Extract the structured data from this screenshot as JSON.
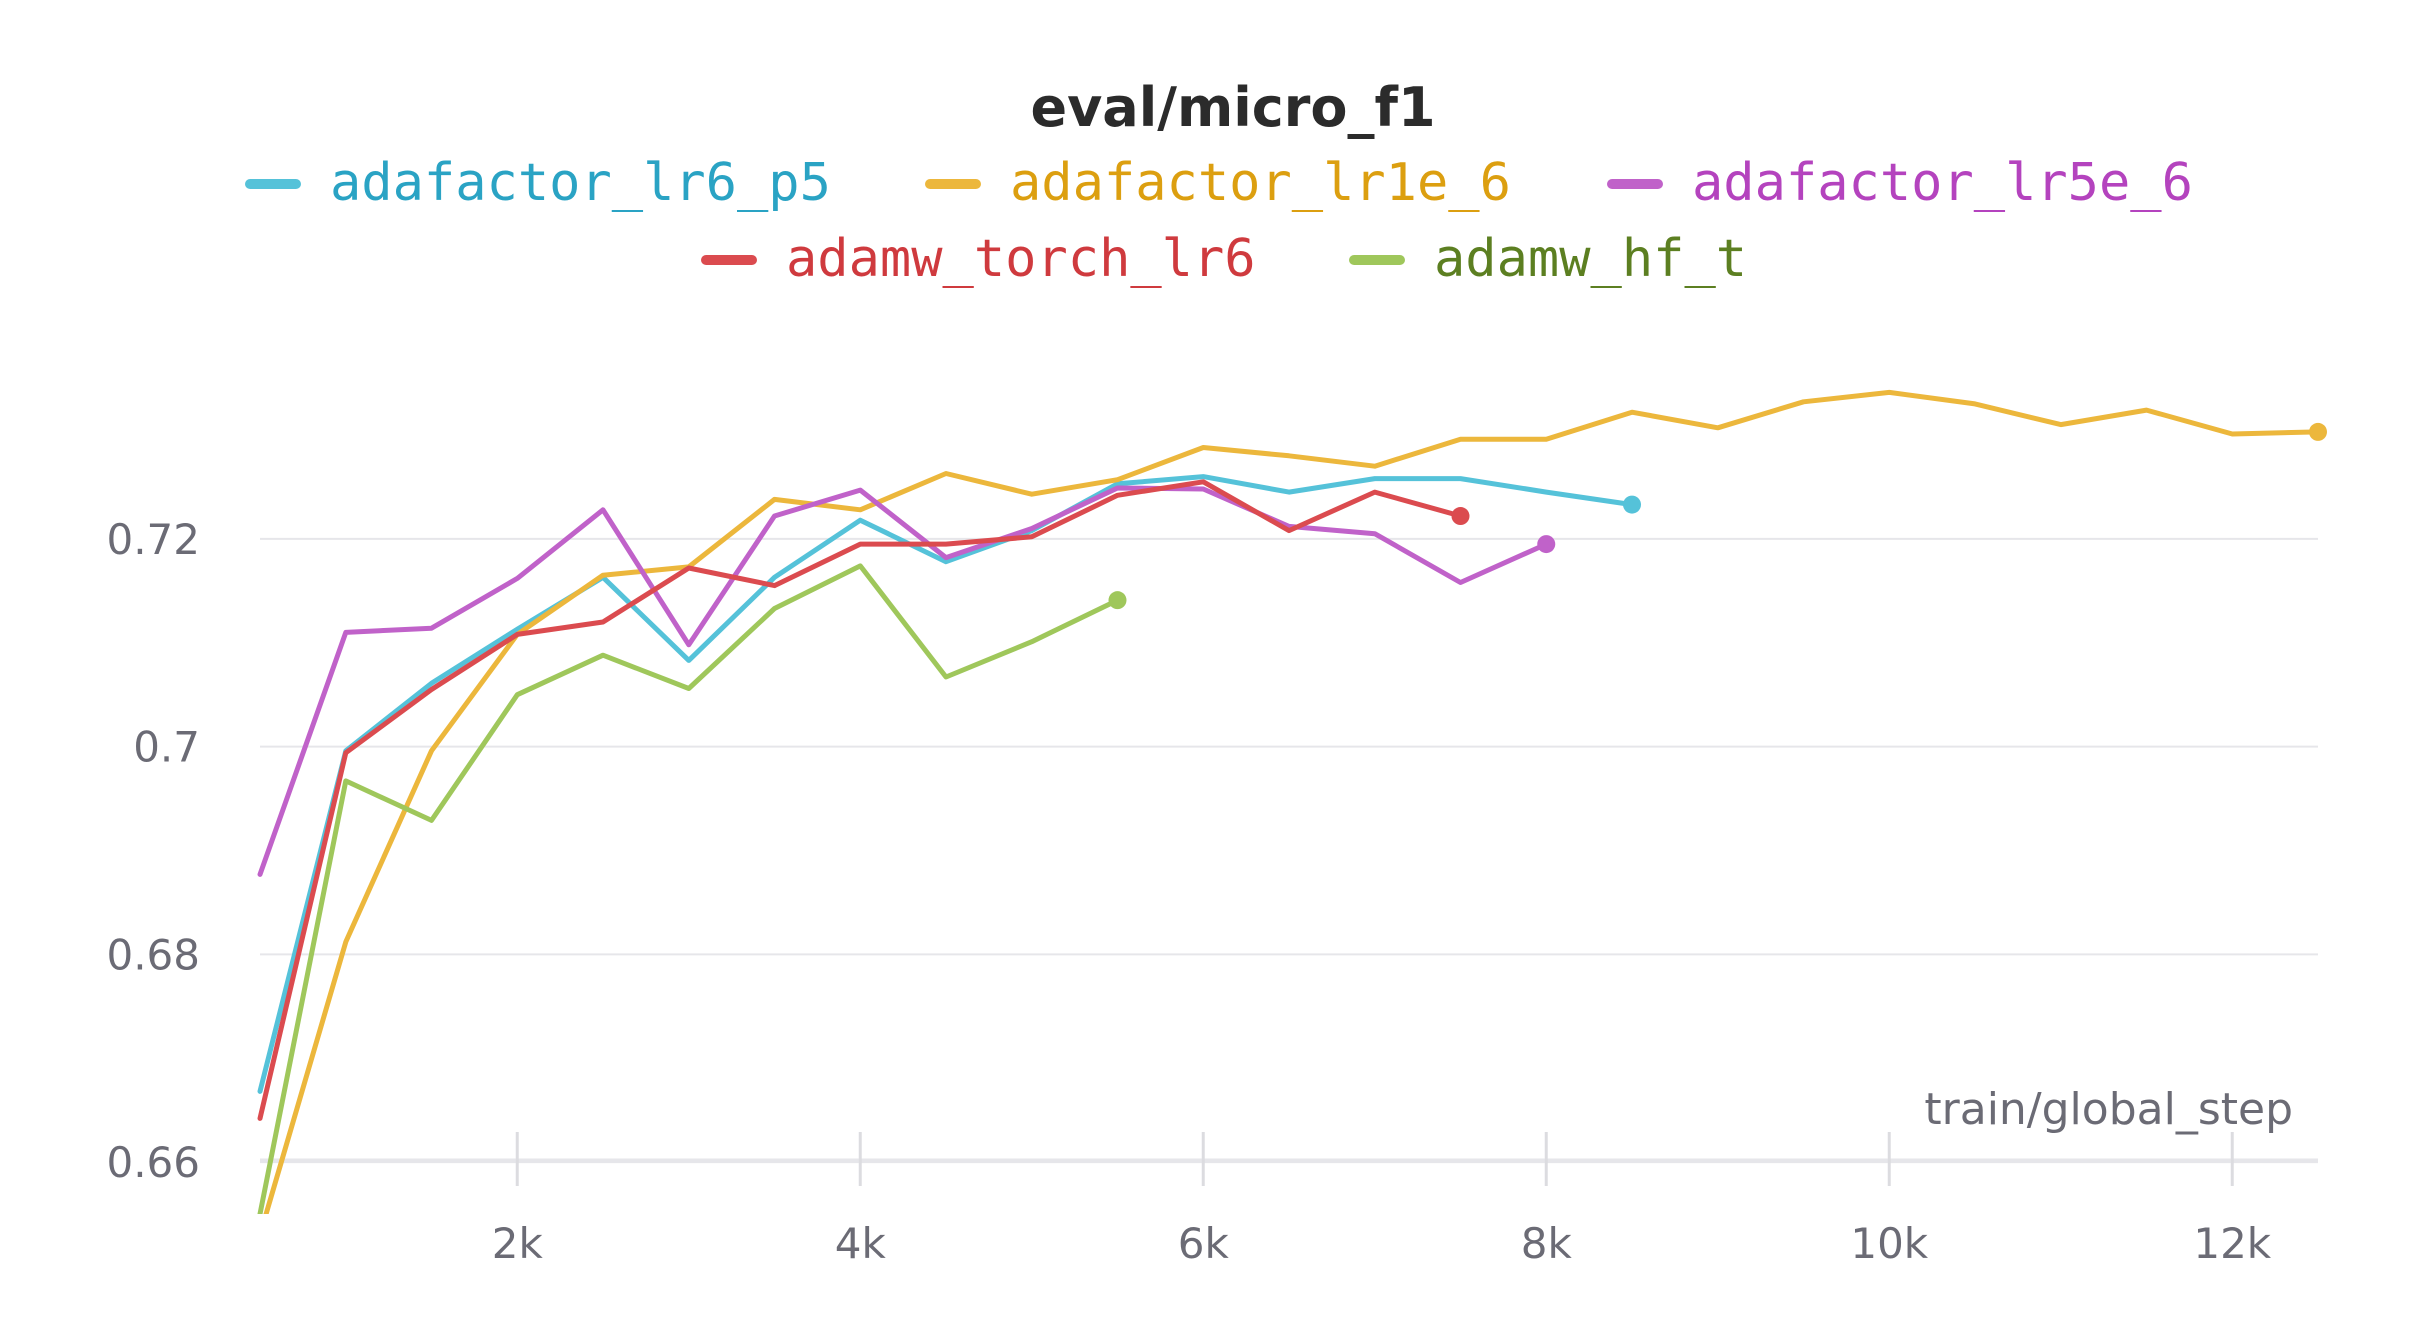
{
  "chart_data": {
    "type": "line",
    "title": "eval/micro_f1",
    "xlabel": "train/global_step",
    "ylabel": "",
    "xlim": [
      500,
      12500
    ],
    "ylim": [
      0.655,
      0.743
    ],
    "xticks": [
      {
        "value": 2000,
        "label": "2k"
      },
      {
        "value": 4000,
        "label": "4k"
      },
      {
        "value": 6000,
        "label": "6k"
      },
      {
        "value": 8000,
        "label": "8k"
      },
      {
        "value": 10000,
        "label": "10k"
      },
      {
        "value": 12000,
        "label": "12k"
      }
    ],
    "yticks": [
      {
        "value": 0.66,
        "label": "0.66"
      },
      {
        "value": 0.68,
        "label": "0.68"
      },
      {
        "value": 0.7,
        "label": "0.7"
      },
      {
        "value": 0.72,
        "label": "0.72"
      }
    ],
    "grid": true,
    "legend_position": "top",
    "series": [
      {
        "name": "adafactor_lr6_p5",
        "color": "#55c2d9",
        "text_color": "#2aa3c4",
        "x": [
          500,
          1000,
          1500,
          2000,
          2500,
          3000,
          3500,
          4000,
          4500,
          5000,
          5500,
          6000,
          6500,
          7000,
          7500,
          8000,
          8500
        ],
        "y": [
          0.6668,
          0.6996,
          0.7061,
          0.7113,
          0.7163,
          0.7083,
          0.7163,
          0.7218,
          0.7178,
          0.7208,
          0.7253,
          0.726,
          0.7245,
          0.7258,
          0.7258,
          0.7245,
          0.7233
        ]
      },
      {
        "name": "adafactor_lr1e_6",
        "color": "#ecb73c",
        "text_color": "#dc9f10",
        "x": [
          500,
          1000,
          1500,
          2000,
          2500,
          3000,
          3500,
          4000,
          4500,
          5000,
          5500,
          6000,
          6500,
          7000,
          7500,
          8000,
          8500,
          9000,
          9500,
          10000,
          10500,
          11000,
          11500,
          12000,
          12500
        ],
        "y": [
          0.653,
          0.6812,
          0.6996,
          0.7108,
          0.7165,
          0.7173,
          0.7238,
          0.7228,
          0.7263,
          0.7243,
          0.7257,
          0.7288,
          0.728,
          0.727,
          0.7296,
          0.7296,
          0.7322,
          0.7307,
          0.7332,
          0.7341,
          0.733,
          0.731,
          0.7324,
          0.7301,
          0.7303
        ]
      },
      {
        "name": "adafactor_lr5e_6",
        "color": "#c062c9",
        "text_color": "#b443be",
        "x": [
          500,
          1000,
          1500,
          2000,
          2500,
          3000,
          3500,
          4000,
          4500,
          5000,
          5500,
          6000,
          6500,
          7000,
          7500,
          8000
        ],
        "y": [
          0.6877,
          0.711,
          0.7114,
          0.7162,
          0.7228,
          0.7098,
          0.7222,
          0.7247,
          0.7182,
          0.721,
          0.7249,
          0.7248,
          0.7212,
          0.7205,
          0.7158,
          0.7195
        ]
      },
      {
        "name": "adamw_torch_lr6",
        "color": "#db4b4f",
        "text_color": "#cf3a3e",
        "x": [
          500,
          1000,
          1500,
          2000,
          2500,
          3000,
          3500,
          4000,
          4500,
          5000,
          5500,
          6000,
          6500,
          7000,
          7500
        ],
        "y": [
          0.6642,
          0.6994,
          0.7055,
          0.7108,
          0.712,
          0.7172,
          0.7155,
          0.7195,
          0.7195,
          0.7202,
          0.7242,
          0.7255,
          0.7208,
          0.7245,
          0.7222
        ]
      },
      {
        "name": "adamw_hf_t",
        "color": "#9fc75b",
        "text_color": "#5c7f21",
        "x": [
          500,
          1000,
          1500,
          2000,
          2500,
          3000,
          3500,
          4000,
          4500,
          5000,
          5500
        ],
        "y": [
          0.655,
          0.6967,
          0.6929,
          0.705,
          0.7088,
          0.7056,
          0.7133,
          0.7174,
          0.7067,
          0.7101,
          0.7141
        ]
      }
    ]
  }
}
